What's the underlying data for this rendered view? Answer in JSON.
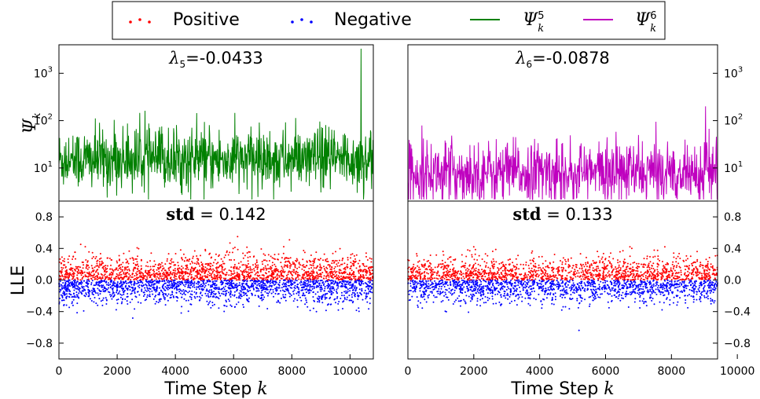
{
  "legend": {
    "positive": "Positive",
    "negative": "Negative",
    "psi5": "Ψ",
    "psi5_sub": "k",
    "psi5_sup": "5",
    "psi6": "Ψ",
    "psi6_sub": "k",
    "psi6_sup": "6"
  },
  "colors": {
    "positive": "#ff0000",
    "negative": "#0000ff",
    "psi5": "#008000",
    "psi6": "#bf00bf"
  },
  "chart_data": [
    {
      "type": "line",
      "panel": "top-left",
      "series": [
        {
          "name": "Ψ_k^5",
          "color": "#008000"
        }
      ],
      "title_symbol": "λ",
      "title_sub": "5",
      "title_value": "=-0.0433",
      "ylabel": "Ψ",
      "ylabel_sub": "k",
      "yscale": "log",
      "ylim": [
        2,
        4000
      ],
      "yticks": [
        {
          "value": 10,
          "base": "10",
          "exp": "1"
        },
        {
          "value": 100,
          "base": "10",
          "exp": "2"
        },
        {
          "value": 1000,
          "base": "10",
          "exp": "3"
        }
      ],
      "xlim": [
        0,
        10800
      ],
      "n_points": 900,
      "median": 15,
      "max_peak": 3300
    },
    {
      "type": "line",
      "panel": "top-right",
      "series": [
        {
          "name": "Ψ_k^6",
          "color": "#bf00bf"
        }
      ],
      "title_symbol": "λ",
      "title_sub": "6",
      "title_value": "=-0.0878",
      "yscale": "log",
      "ylim": [
        2,
        4000
      ],
      "yticks": [
        {
          "value": 10,
          "base": "10",
          "exp": "1"
        },
        {
          "value": 100,
          "base": "10",
          "exp": "2"
        },
        {
          "value": 1000,
          "base": "10",
          "exp": "3"
        }
      ],
      "xlim": [
        0,
        9400
      ],
      "n_points": 800,
      "median": 8,
      "max_peak": 200
    },
    {
      "type": "scatter",
      "panel": "bottom-left",
      "series": [
        {
          "name": "Positive",
          "color": "#ff0000"
        },
        {
          "name": "Negative",
          "color": "#0000ff"
        }
      ],
      "title_bold": "std",
      "title_value": " = 0.142",
      "ylabel": "LLE",
      "xlabel": "Time Step",
      "xlabel_var": "k",
      "ylim": [
        -1.0,
        1.0
      ],
      "yticks": [
        "0.8",
        "0.4",
        "0.0",
        "−0.4",
        "−0.8"
      ],
      "ytick_values": [
        0.8,
        0.4,
        0.0,
        -0.4,
        -0.8
      ],
      "xlim": [
        0,
        10800
      ],
      "xticks": [
        "0",
        "2000",
        "4000",
        "6000",
        "8000",
        "10000"
      ],
      "xtick_values": [
        0,
        2000,
        4000,
        6000,
        8000,
        10000
      ],
      "n_points": 3400,
      "std": 0.142,
      "min": -0.62,
      "max": 0.55
    },
    {
      "type": "scatter",
      "panel": "bottom-right",
      "series": [
        {
          "name": "Positive",
          "color": "#ff0000"
        },
        {
          "name": "Negative",
          "color": "#0000ff"
        }
      ],
      "title_bold": "std",
      "title_value": " = 0.133",
      "xlabel": "Time Step",
      "xlabel_var": "k",
      "ylim": [
        -1.0,
        1.0
      ],
      "yticks": [
        "0.8",
        "0.4",
        "0.0",
        "−0.4",
        "−0.8"
      ],
      "ytick_values": [
        0.8,
        0.4,
        0.0,
        -0.4,
        -0.8
      ],
      "xlim": [
        0,
        9400
      ],
      "xticks": [
        "0",
        "2000",
        "4000",
        "6000",
        "8000",
        "10000"
      ],
      "xtick_values": [
        0,
        2000,
        4000,
        6000,
        8000,
        10000
      ],
      "n_points": 3000,
      "std": 0.133,
      "min": -0.78,
      "max": 0.42
    }
  ]
}
